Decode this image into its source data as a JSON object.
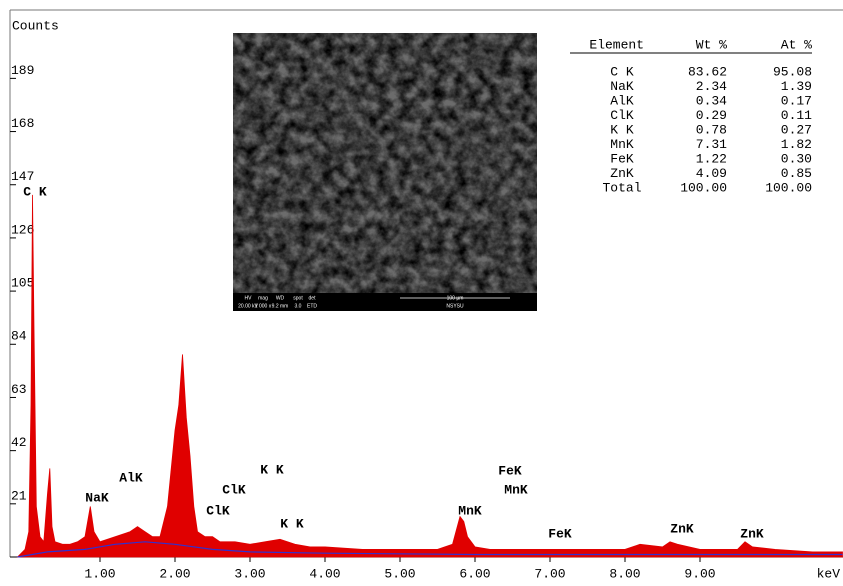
{
  "chart_data": {
    "type": "area",
    "y_label": "Counts",
    "x_label": "keV",
    "xlim": [
      -0.2,
      10.9
    ],
    "ylim": [
      0,
      216
    ],
    "xticks": [
      {
        "value": 1,
        "label": "1.00"
      },
      {
        "value": 2,
        "label": "2.00"
      },
      {
        "value": 3,
        "label": "3.00"
      },
      {
        "value": 4,
        "label": "4.00"
      },
      {
        "value": 5,
        "label": "5.00"
      },
      {
        "value": 6,
        "label": "6.00"
      },
      {
        "value": 7,
        "label": "7.00"
      },
      {
        "value": 8,
        "label": "8.00"
      },
      {
        "value": 9,
        "label": "9.00"
      }
    ],
    "yticks": [
      21,
      42,
      63,
      84,
      105,
      126,
      147,
      168,
      189
    ],
    "series": [
      {
        "color": "#e00000",
        "fill": true,
        "x": [
          -0.1,
          0.0,
          0.05,
          0.08,
          0.1,
          0.12,
          0.15,
          0.2,
          0.25,
          0.3,
          0.33,
          0.36,
          0.4,
          0.5,
          0.6,
          0.7,
          0.8,
          0.87,
          0.92,
          1.0,
          1.1,
          1.2,
          1.3,
          1.4,
          1.5,
          1.6,
          1.7,
          1.8,
          1.9,
          2.0,
          2.05,
          2.1,
          2.15,
          2.2,
          2.25,
          2.3,
          2.4,
          2.5,
          2.6,
          2.8,
          3.0,
          3.2,
          3.4,
          3.6,
          3.8,
          4.0,
          4.5,
          5.0,
          5.5,
          5.7,
          5.8,
          5.85,
          5.9,
          6.0,
          6.2,
          6.5,
          7.0,
          7.5,
          8.0,
          8.2,
          8.5,
          8.6,
          8.7,
          9.0,
          9.5,
          9.6,
          9.7,
          10.0,
          10.5,
          10.9
        ],
        "values": [
          0,
          3,
          10,
          60,
          143,
          90,
          20,
          8,
          6,
          25,
          35,
          12,
          6,
          5,
          5,
          6,
          8,
          20,
          10,
          6,
          7,
          8,
          9,
          10,
          12,
          10,
          8,
          8,
          20,
          50,
          60,
          80,
          55,
          40,
          20,
          10,
          8,
          8,
          6,
          6,
          5,
          6,
          7,
          5,
          4,
          4,
          3,
          3,
          3,
          5,
          16,
          14,
          8,
          4,
          3,
          3,
          3,
          3,
          3,
          5,
          4,
          6,
          5,
          3,
          3,
          6,
          4,
          3,
          2,
          2
        ]
      },
      {
        "color": "#3030d0",
        "fill": false,
        "x": [
          -0.1,
          0.3,
          0.8,
          1.2,
          1.6,
          2.0,
          2.5,
          3.0,
          4.0,
          6.0,
          8.0,
          10.9
        ],
        "values": [
          0,
          2,
          3,
          5,
          6,
          5,
          3,
          2,
          1.5,
          1,
          1,
          1
        ]
      }
    ],
    "annotations": [
      "C K",
      "NaK",
      "AlK",
      "ClK",
      "ClK",
      "K K",
      "K K",
      "MnK",
      "FeK",
      "MnK",
      "FeK",
      "ZnK",
      "ZnK"
    ]
  },
  "table": {
    "header": [
      "Element",
      "Wt %",
      "At %"
    ],
    "rows": [
      [
        "C K",
        "83.62",
        "95.08"
      ],
      [
        "NaK",
        "2.34",
        "1.39"
      ],
      [
        "AlK",
        "0.34",
        "0.17"
      ],
      [
        "ClK",
        "0.29",
        "0.11"
      ],
      [
        "K K",
        "0.78",
        "0.27"
      ],
      [
        "MnK",
        "7.31",
        "1.82"
      ],
      [
        "FeK",
        "1.22",
        "0.30"
      ],
      [
        "ZnK",
        "4.09",
        "0.85"
      ],
      [
        "Total",
        "100.00",
        "100.00"
      ]
    ]
  },
  "inset": {
    "info_labels": [
      "HV",
      "mag",
      "WD",
      "spot",
      "det"
    ],
    "info_values": [
      "20.00 kV",
      "1 000 x",
      "9.2 mm",
      "3.0",
      "ETD"
    ],
    "scale": "100 µm",
    "org": "NSYSU"
  }
}
